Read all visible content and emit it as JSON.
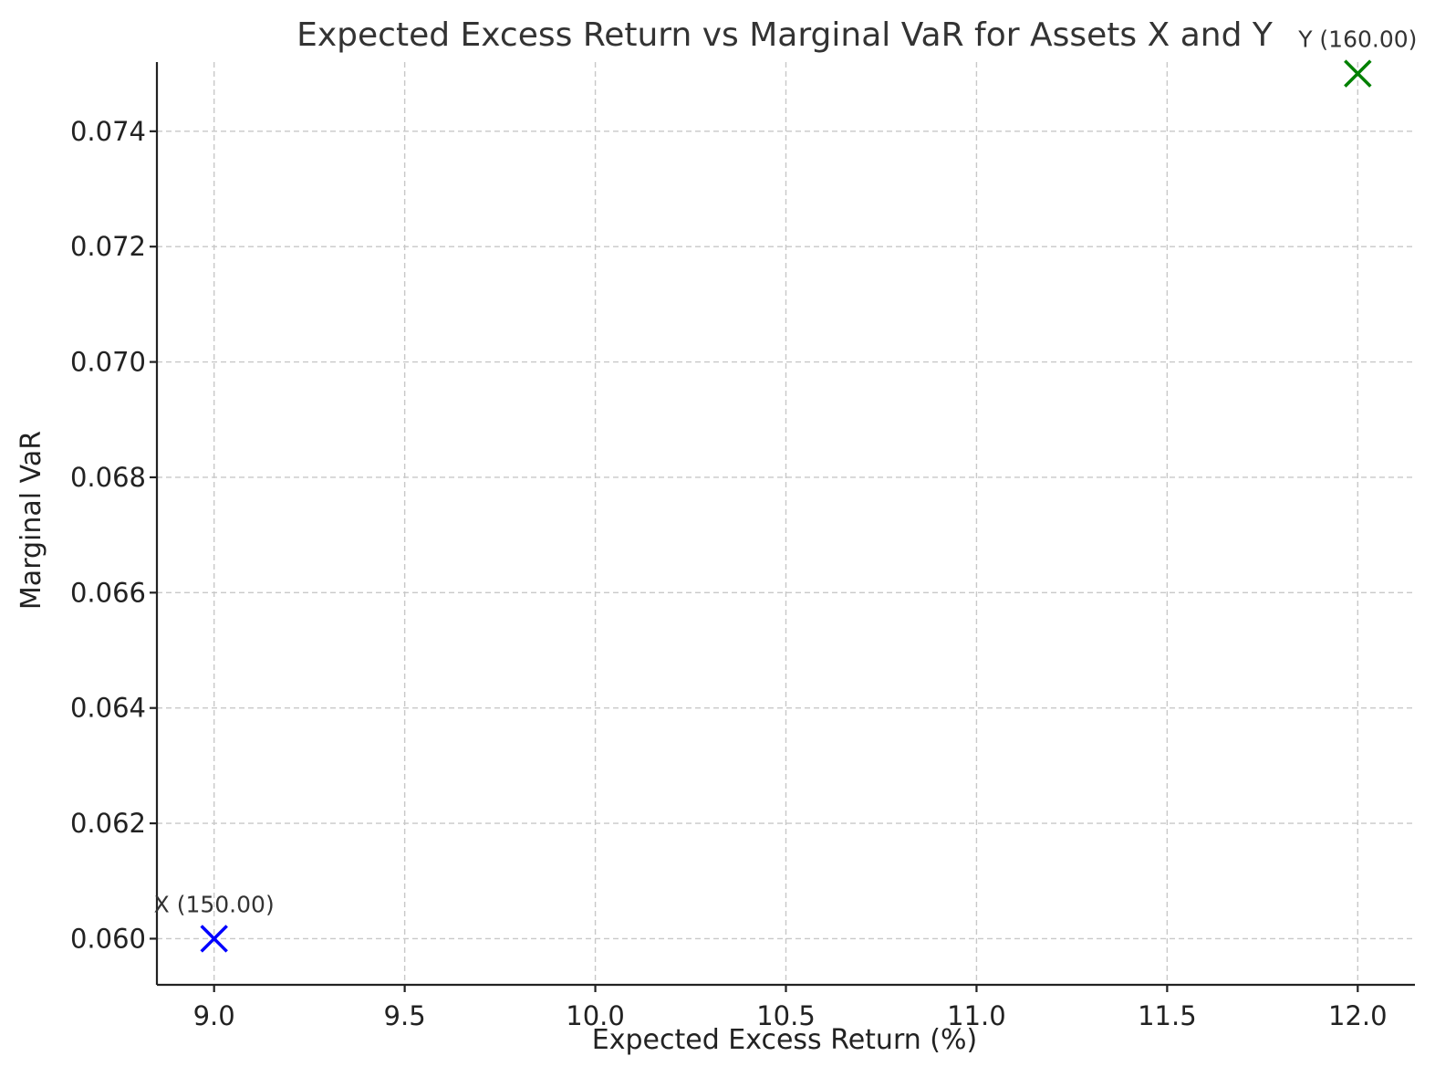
{
  "chart_data": {
    "type": "scatter",
    "title": "Expected Excess Return vs Marginal VaR for Assets X and Y",
    "xlabel": "Expected Excess Return (%)",
    "ylabel": "Marginal VaR",
    "xlim": [
      8.85,
      12.15
    ],
    "ylim": [
      0.0592,
      0.0752
    ],
    "xticks": [
      9.0,
      9.5,
      10.0,
      10.5,
      11.0,
      11.5,
      12.0
    ],
    "xtick_labels": [
      "9.0",
      "9.5",
      "10.0",
      "10.5",
      "11.0",
      "11.5",
      "12.0"
    ],
    "yticks": [
      0.06,
      0.062,
      0.064,
      0.066,
      0.068,
      0.07,
      0.072,
      0.074
    ],
    "ytick_labels": [
      "0.060",
      "0.062",
      "0.064",
      "0.066",
      "0.068",
      "0.070",
      "0.072",
      "0.074"
    ],
    "grid": true,
    "marker": "x",
    "points": [
      {
        "label": "X (150.00)",
        "x": 9.0,
        "y": 0.06,
        "color": "#0000ff"
      },
      {
        "label": "Y (160.00)",
        "x": 12.0,
        "y": 0.075,
        "color": "#008000"
      }
    ]
  }
}
